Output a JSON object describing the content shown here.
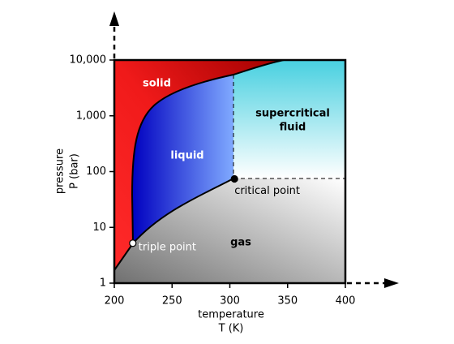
{
  "chart_data": {
    "type": "phase",
    "x_label": [
      "temperature",
      "T (K)"
    ],
    "y_label": [
      "pressure",
      "P (bar)"
    ],
    "xlim": [
      200,
      400
    ],
    "xticks": [
      200,
      250,
      300,
      350,
      400
    ],
    "ylim": [
      1,
      10000
    ],
    "y_scale": "log",
    "yticks": [
      1,
      10,
      100,
      {
        "value": 1000,
        "label": "1,000"
      },
      {
        "value": 10000,
        "label": "10,000"
      }
    ],
    "regions": {
      "solid": "solid",
      "liquid": "liquid",
      "supercritical": [
        "supercritical",
        "fluid"
      ],
      "gas": "gas"
    },
    "points": [
      {
        "name": "triple point",
        "x": 216,
        "y": 5.2
      },
      {
        "name": "critical point",
        "x": 304,
        "y": 74
      }
    ]
  }
}
